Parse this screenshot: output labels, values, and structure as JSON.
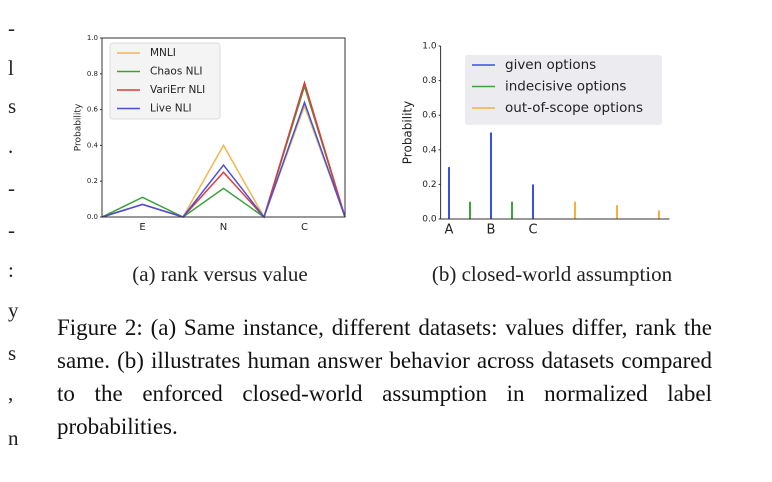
{
  "chart_data": [
    {
      "type": "line",
      "categories": [
        null,
        "E",
        null,
        "N",
        null,
        "C",
        null
      ],
      "y_label": "Probability",
      "ylim": [
        0,
        1
      ],
      "yticks": [
        {
          "value": 0,
          "label": "0.0"
        },
        0.2,
        0.4,
        0.6,
        0.8,
        {
          "value": 1,
          "label": "1.0"
        }
      ],
      "legend": "upper left",
      "series": [
        {
          "name": "MNLI",
          "color": "#f2b64e",
          "values": [
            0,
            0.07,
            0,
            0.4,
            0,
            0.62,
            0
          ]
        },
        {
          "name": "Chaos NLI",
          "color": "#3aa23a",
          "values": [
            0,
            0.11,
            0,
            0.16,
            0,
            0.73,
            0
          ]
        },
        {
          "name": "VariErr NLI",
          "color": "#e23a3a",
          "values": [
            0,
            0.07,
            0,
            0.25,
            0,
            0.75,
            0
          ]
        },
        {
          "name": "Live NLI",
          "color": "#4650e0",
          "values": [
            0,
            0.07,
            0,
            0.29,
            0,
            0.64,
            0
          ]
        }
      ],
      "caption": "(a) rank versus value"
    },
    {
      "type": "bar",
      "y_label": "Probability",
      "xlim": [
        -0.4,
        10.5
      ],
      "xticks": [
        {
          "value": 0,
          "label": "A"
        },
        {
          "value": 2,
          "label": "B"
        },
        {
          "value": 4,
          "label": "C"
        }
      ],
      "ylim": [
        0,
        1
      ],
      "yticks": [
        {
          "value": 0,
          "label": "0.0"
        },
        0.2,
        0.4,
        0.6,
        0.8,
        {
          "value": 1,
          "label": "1.0"
        }
      ],
      "legend": "upper right",
      "series": [
        {
          "name": "given options",
          "color": "#3b4fe0",
          "x": [
            0,
            2,
            4
          ],
          "values": [
            0.3,
            0.5,
            0.2
          ]
        },
        {
          "name": "indecisive options",
          "color": "#3aa53a",
          "x": [
            1,
            3
          ],
          "values": [
            0.1,
            0.1
          ]
        },
        {
          "name": "out-of-scope options",
          "color": "#f5b041",
          "x": [
            6,
            8,
            10
          ],
          "values": [
            0.1,
            0.08,
            0.05
          ]
        }
      ],
      "caption": "(b) closed-world assumption"
    }
  ],
  "figure_caption": "Figure 2: (a) Same instance, different datasets: values differ, rank the same. (b) illustrates human answer behavior across datasets compared to the enforced closed-world assumption in normalized label probabilities.",
  "margin_fragments": [
    "-",
    "l",
    "s",
    ".",
    "-",
    "-",
    ":",
    "y",
    "s",
    ",",
    "n"
  ]
}
